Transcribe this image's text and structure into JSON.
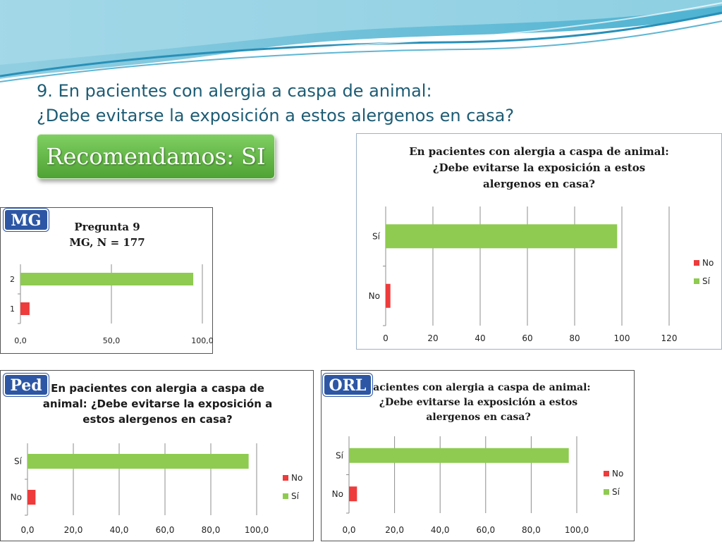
{
  "slide": {
    "title_line1": "9. En pacientes con alergia a caspa de animal:",
    "title_line2": "¿Debe evitarse la exposición a estos alergenos en casa?",
    "recommend_label": "Recomendamos: SI"
  },
  "colors": {
    "accent": "#1d5c74",
    "bar_si": "#8ecb50",
    "bar_no": "#ee3b3b",
    "badge": "#2d57a4"
  },
  "charts": {
    "main": {
      "title_lines": [
        "En pacientes con alergia a caspa de animal:",
        "¿Debe evitarse la exposición a estos",
        "alergenos en casa?"
      ],
      "legend": [
        "No",
        "Sí"
      ]
    },
    "mg": {
      "badge": "MG",
      "title_lines": [
        "Pregunta 9",
        "MG, N = 177"
      ]
    },
    "ped": {
      "badge": "Ped",
      "title_lines": [
        "En pacientes con alergia a caspa de",
        "animal: ¿Debe evitarse la exposición a",
        "estos alergenos en casa?"
      ],
      "legend": [
        "No",
        "Sí"
      ]
    },
    "orl": {
      "badge": "ORL",
      "title_lines": [
        "pacientes con alergia a caspa de animal:",
        "¿Debe evitarse la exposición a estos",
        "alergenos en casa?"
      ],
      "legend": [
        "No",
        "Sí"
      ]
    }
  },
  "chart_data": [
    {
      "type": "bar",
      "orientation": "horizontal",
      "categories": [
        "No",
        "Sí"
      ],
      "series": [
        {
          "values": [
            2,
            98
          ]
        }
      ],
      "xlim": [
        0,
        120
      ],
      "xticks": [
        "0",
        "20",
        "40",
        "60",
        "80",
        "100",
        "120"
      ],
      "grid": true,
      "legend": "right"
    },
    {
      "type": "bar",
      "orientation": "horizontal",
      "categories": [
        "1",
        "2"
      ],
      "series": [
        {
          "values": [
            5,
            95
          ]
        }
      ],
      "xlim": [
        0,
        100
      ],
      "xticks": [
        "0,0",
        "50,0",
        "100,0"
      ],
      "grid": true
    },
    {
      "type": "bar",
      "orientation": "horizontal",
      "categories": [
        "No",
        "Sí"
      ],
      "series": [
        {
          "values": [
            3.5,
            96.5
          ]
        }
      ],
      "xlim": [
        0,
        100
      ],
      "xticks": [
        "0,0",
        "20,0",
        "40,0",
        "60,0",
        "80,0",
        "100,0"
      ],
      "grid": true,
      "legend": "right"
    },
    {
      "type": "bar",
      "orientation": "horizontal",
      "categories": [
        "No",
        "Sí"
      ],
      "series": [
        {
          "values": [
            3.5,
            96.5
          ]
        }
      ],
      "xlim": [
        0,
        100
      ],
      "xticks": [
        "0,0",
        "20,0",
        "40,0",
        "60,0",
        "80,0",
        "100,0"
      ],
      "grid": true,
      "legend": "right"
    }
  ]
}
